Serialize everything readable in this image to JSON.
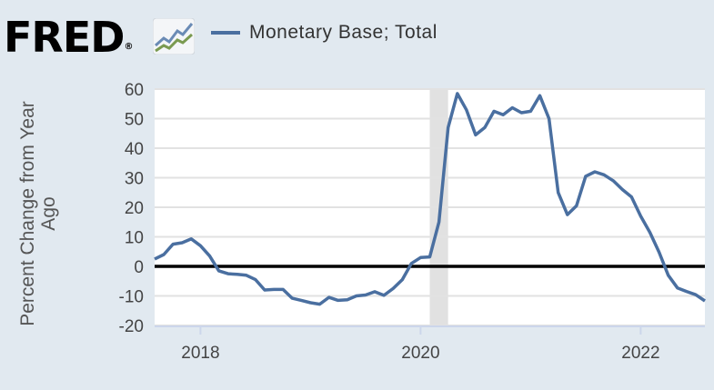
{
  "logo": {
    "text": "FRED",
    "registered": "®"
  },
  "legend": {
    "label": "Monetary Base; Total",
    "color": "#4a6fa0"
  },
  "chart_data": {
    "type": "line",
    "title": "",
    "xlabel": "",
    "ylabel": "Percent Change from Year Ago",
    "ylim": [
      -20,
      60
    ],
    "yticks": [
      60,
      50,
      40,
      30,
      20,
      10,
      0,
      -10,
      -20
    ],
    "xticks": [
      "2018",
      "2020",
      "2022"
    ],
    "x_start": "2017-08",
    "x_end": "2022-08",
    "grid": true,
    "recession_shading": {
      "start": "2020-02",
      "end": "2020-04"
    },
    "series": [
      {
        "name": "Monetary Base; Total",
        "color": "#4a6fa0",
        "start": "2017-08",
        "frequency": "monthly",
        "values": [
          2.5,
          4,
          7.5,
          8,
          9.3,
          7,
          3.5,
          -1.5,
          -2.5,
          -2.7,
          -3,
          -4.5,
          -8,
          -7.8,
          -7.8,
          -10.8,
          -11.5,
          -12.3,
          -12.8,
          -10.5,
          -11.5,
          -11.3,
          -10,
          -9.7,
          -8.6,
          -9.8,
          -7.5,
          -4.5,
          1,
          3,
          3.2,
          15,
          47,
          58.5,
          53,
          44.5,
          47,
          52.5,
          51.3,
          53.7,
          52,
          52.5,
          57.8,
          50,
          25,
          17.5,
          20.5,
          30.5,
          32,
          31,
          29,
          26,
          23.5,
          17,
          11.5,
          4.8,
          -3,
          -7.3,
          -8.5,
          -9.6,
          -11.7
        ]
      }
    ]
  }
}
